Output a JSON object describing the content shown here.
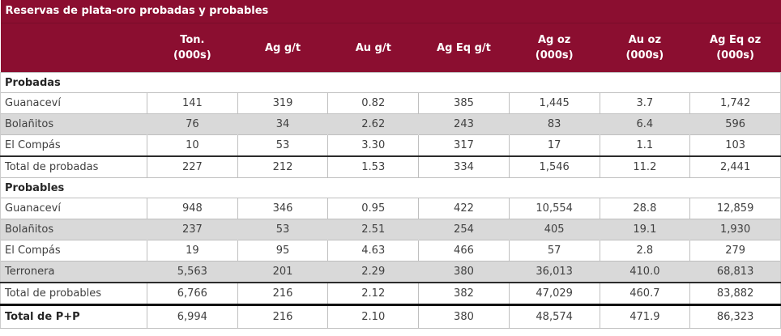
{
  "colors": {
    "header_bg": "#8B0E30",
    "header_text": "#FFFFFF",
    "shaded_row_bg": "#D9D9D9",
    "body_text": "#404040",
    "grid_line": "#BFBFBF"
  },
  "table": {
    "title": "Reservas de plata-oro probadas y probables",
    "headers": [
      {
        "l1": "Ton.",
        "l2": "(000s)"
      },
      {
        "l1": "Ag g/t",
        "l2": ""
      },
      {
        "l1": "Au g/t",
        "l2": ""
      },
      {
        "l1": "Ag Eq g/t",
        "l2": ""
      },
      {
        "l1": "Ag oz",
        "l2": "(000s)"
      },
      {
        "l1": "Au oz",
        "l2": "(000s)"
      },
      {
        "l1": "Ag Eq oz",
        "l2": "(000s)"
      }
    ],
    "sections": [
      "Probadas",
      "Probables"
    ],
    "rows": [
      {
        "label": "Guanaceví",
        "c": [
          "141",
          "319",
          "0.82",
          "385",
          "1,445",
          "3.7",
          "1,742"
        ]
      },
      {
        "label": "Bolañitos",
        "c": [
          "76",
          "34",
          "2.62",
          "243",
          "83",
          "6.4",
          "596"
        ]
      },
      {
        "label": "El Compás",
        "c": [
          "10",
          "53",
          "3.30",
          "317",
          "17",
          "1.1",
          "103"
        ]
      },
      {
        "label": "Total de probadas",
        "c": [
          "227",
          "212",
          "1.53",
          "334",
          "1,546",
          "11.2",
          "2,441"
        ]
      },
      {
        "label": "Guanaceví",
        "c": [
          "948",
          "346",
          "0.95",
          "422",
          "10,554",
          "28.8",
          "12,859"
        ]
      },
      {
        "label": "Bolañitos",
        "c": [
          "237",
          "53",
          "2.51",
          "254",
          "405",
          "19.1",
          "1,930"
        ]
      },
      {
        "label": "El Compás",
        "c": [
          "19",
          "95",
          "4.63",
          "466",
          "57",
          "2.8",
          "279"
        ]
      },
      {
        "label": "Terronera",
        "c": [
          "5,563",
          "201",
          "2.29",
          "380",
          "36,013",
          "410.0",
          "68,813"
        ]
      },
      {
        "label": "Total de probables",
        "c": [
          "6,766",
          "216",
          "2.12",
          "382",
          "47,029",
          "460.7",
          "83,882"
        ]
      },
      {
        "label": "Total de P+P",
        "c": [
          "6,994",
          "216",
          "2.10",
          "380",
          "48,574",
          "471.9",
          "86,323"
        ]
      }
    ]
  }
}
